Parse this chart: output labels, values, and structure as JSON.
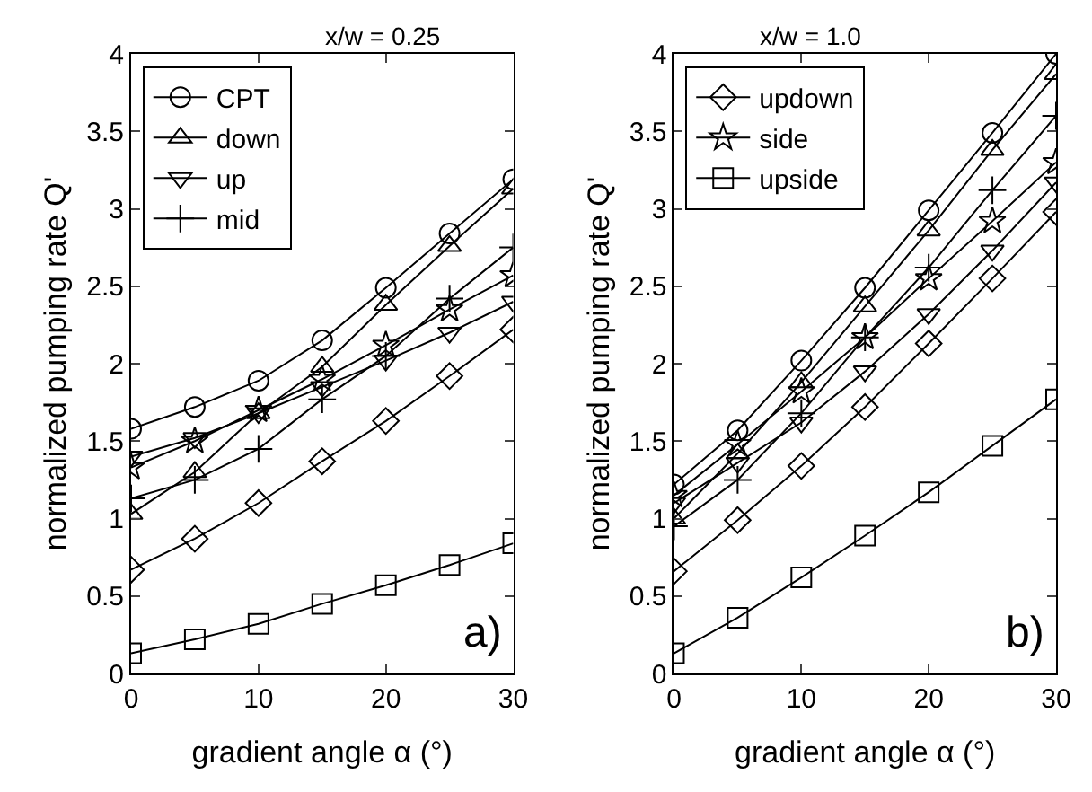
{
  "chart_data": [
    {
      "type": "line",
      "title": "x/w = 0.25",
      "xlabel": "gradient angle α (°)",
      "ylabel": "normalized pumping rate Q'",
      "x": [
        0,
        5,
        10,
        15,
        20,
        25,
        30
      ],
      "xlim": [
        0,
        30
      ],
      "xticks": [
        0,
        10,
        20,
        30
      ],
      "ylim": [
        0,
        4
      ],
      "yticks": [
        0,
        0.5,
        1,
        1.5,
        2,
        2.5,
        3,
        3.5,
        4
      ],
      "legend": "top left",
      "line_style": "solid",
      "annotations": [
        "a)"
      ],
      "series": [
        {
          "name": "CPT",
          "color": "#000000",
          "marker": "circle",
          "values": [
            1.58,
            1.72,
            1.89,
            2.15,
            2.49,
            2.84,
            3.19
          ]
        },
        {
          "name": "down",
          "color": "#000000",
          "marker": "triangle",
          "values": [
            1.03,
            1.3,
            1.68,
            1.98,
            2.38,
            2.76,
            3.13
          ]
        },
        {
          "name": "up",
          "color": "#000000",
          "marker": "triangle-down",
          "values": [
            1.4,
            1.52,
            1.68,
            1.85,
            2.02,
            2.2,
            2.4
          ]
        },
        {
          "name": "mid",
          "color": "#000000",
          "marker": "cross",
          "values": [
            1.13,
            1.25,
            1.45,
            1.77,
            2.05,
            2.42,
            2.75
          ]
        },
        {
          "color": "#000000",
          "marker": "diamond",
          "values": [
            0.67,
            0.87,
            1.1,
            1.37,
            1.63,
            1.92,
            2.22
          ]
        },
        {
          "color": "#000000",
          "marker": "star",
          "values": [
            1.33,
            1.5,
            1.7,
            1.9,
            2.12,
            2.35,
            2.57
          ]
        },
        {
          "color": "#000000",
          "marker": "square",
          "values": [
            0.13,
            0.22,
            0.32,
            0.45,
            0.57,
            0.7,
            0.84
          ]
        }
      ]
    },
    {
      "type": "line",
      "title": "x/w = 1.0",
      "xlabel": "gradient angle α (°)",
      "ylabel": "normalized pumping rate Q'",
      "x": [
        0,
        5,
        10,
        15,
        20,
        25,
        30
      ],
      "xlim": [
        0,
        30
      ],
      "xticks": [
        0,
        10,
        20,
        30
      ],
      "ylim": [
        0,
        4
      ],
      "yticks": [
        0,
        0.5,
        1,
        1.5,
        2,
        2.5,
        3,
        3.5,
        4
      ],
      "legend": "top left",
      "line_style": "solid",
      "annotations": [
        "b)"
      ],
      "series": [
        {
          "color": "#000000",
          "marker": "circle",
          "values": [
            1.22,
            1.57,
            2.02,
            2.49,
            2.99,
            3.49,
            4.0
          ]
        },
        {
          "color": "#000000",
          "marker": "triangle",
          "values": [
            1.0,
            1.42,
            1.88,
            2.37,
            2.86,
            3.38,
            3.87
          ]
        },
        {
          "color": "#000000",
          "marker": "triangle-down",
          "values": [
            1.1,
            1.36,
            1.62,
            1.95,
            2.32,
            2.73,
            3.17
          ]
        },
        {
          "color": "#000000",
          "marker": "cross",
          "values": [
            0.95,
            1.25,
            1.68,
            2.17,
            2.62,
            3.12,
            3.6
          ]
        },
        {
          "name": "updown",
          "color": "#000000",
          "marker": "diamond",
          "values": [
            0.66,
            0.99,
            1.34,
            1.72,
            2.13,
            2.55,
            2.98
          ]
        },
        {
          "name": "side",
          "color": "#000000",
          "marker": "star",
          "values": [
            1.15,
            1.48,
            1.82,
            2.17,
            2.55,
            2.92,
            3.3
          ]
        },
        {
          "name": "upside",
          "color": "#000000",
          "marker": "square",
          "values": [
            0.13,
            0.36,
            0.62,
            0.89,
            1.17,
            1.47,
            1.77
          ]
        }
      ]
    }
  ]
}
